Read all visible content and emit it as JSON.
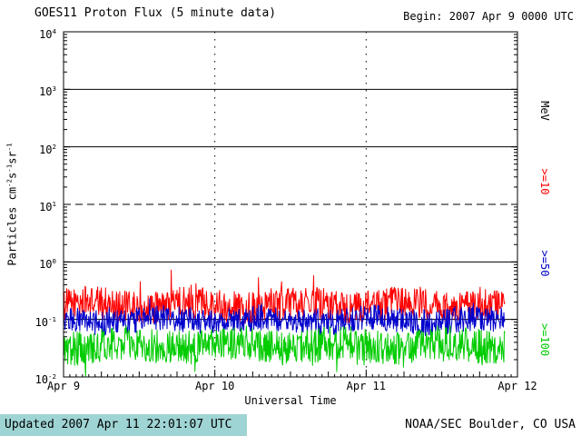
{
  "header": {
    "title": "GOES11 Proton Flux (5 minute data)",
    "begin": "Begin: 2007 Apr 9 0000 UTC"
  },
  "footer": {
    "updated": "Updated 2007 Apr 11 22:01:07 UTC",
    "source": "NOAA/SEC Boulder, CO USA",
    "bar_color": "#9fd4d4"
  },
  "chart_data": {
    "type": "line",
    "title": "GOES11 Proton Flux (5 minute data)",
    "subtitle": "Begin: 2007 Apr 9 0000 UTC",
    "xlabel": "Universal Time",
    "ylabel": "Particles cm⁻²s⁻¹sr⁻¹",
    "ylabel_parts": [
      {
        "text": "Particles cm"
      },
      {
        "sup": "-2"
      },
      {
        "text": "s"
      },
      {
        "sup": "-1"
      },
      {
        "text": "sr"
      },
      {
        "sup": "-1"
      }
    ],
    "right_axis_label": "MeV",
    "y_scale": "log10",
    "ylim_log10": [
      -2,
      4
    ],
    "y_tick_exponents": [
      4,
      3,
      2,
      1,
      0,
      -1,
      -2
    ],
    "y_tick_labels": [
      "10⁴",
      "10³",
      "10²",
      "10¹",
      "10⁰",
      "10⁻¹",
      "10⁻²"
    ],
    "xlim_days": [
      0,
      3
    ],
    "x_ticks": [
      "Apr 9",
      "Apr 10",
      "Apr 11",
      "Apr 12"
    ],
    "x_tick_days": [
      0,
      1,
      2,
      3
    ],
    "solid_gridline_exponents": [
      3,
      2,
      0,
      -1
    ],
    "dashed_gridline_exponents": [
      1
    ],
    "vertical_gridline_days": [
      1,
      2
    ],
    "grid": true,
    "legend_position": "right",
    "data_end_day": 2.917,
    "points_per_day": 288,
    "series": [
      {
        "name": ">=10",
        "unit": "MeV",
        "color": "#ff0000",
        "mean_log10_flux": -0.75,
        "noise_log10": 0.28,
        "spike_prob": 0.04,
        "spike_log10": 0.35,
        "approx_flux_range": [
          0.07,
          0.5
        ]
      },
      {
        "name": ">=50",
        "unit": "MeV",
        "color": "#0000cc",
        "mean_log10_flux": -1.02,
        "noise_log10": 0.22,
        "spike_prob": 0.03,
        "spike_log10": 0.2,
        "approx_flux_range": [
          0.04,
          0.2
        ]
      },
      {
        "name": ">=100",
        "unit": "MeV",
        "color": "#00cc00",
        "mean_log10_flux": -1.45,
        "noise_log10": 0.3,
        "spike_prob": 0.05,
        "spike_log10": -0.3,
        "approx_flux_range": [
          0.015,
          0.1
        ]
      }
    ]
  }
}
